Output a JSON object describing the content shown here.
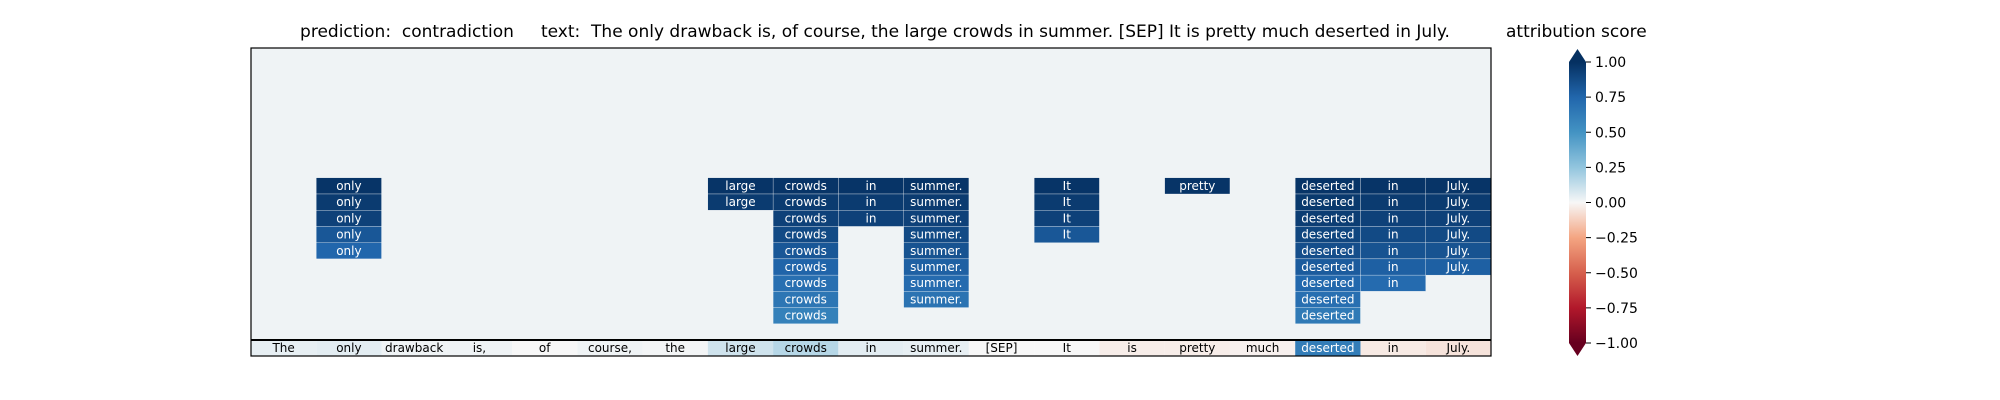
{
  "prediction_label": "prediction:",
  "prediction": "contradiction",
  "text_label": "text:",
  "text": "The only drawback is, of course, the large crowds in summer. [SEP] It is pretty much deserted in July.",
  "colorbar": {
    "title": "attribution score",
    "range": [
      -1.0,
      1.0
    ],
    "ticks": [
      "1.00",
      "0.75",
      "0.50",
      "0.25",
      "0.00",
      "−0.25",
      "−0.50",
      "−0.75",
      "−1.00"
    ],
    "colormap": "RdBu"
  },
  "chart_data": {
    "type": "heatmap",
    "title": "",
    "tokens": [
      "The",
      "only",
      "drawback",
      "is,",
      "of",
      "course,",
      "the",
      "large",
      "crowds",
      "in",
      "summer.",
      "[SEP]",
      "It",
      "is",
      "pretty",
      "much",
      "deserted",
      "in",
      "July."
    ],
    "token_scores": [
      0.04,
      0.05,
      0.02,
      0.02,
      0.0,
      0.02,
      0.01,
      0.1,
      0.16,
      0.05,
      0.04,
      0.0,
      0.0,
      -0.03,
      -0.03,
      -0.02,
      0.62,
      -0.04,
      -0.06
    ],
    "rows_above": 18,
    "background_score": 0.02,
    "columns": [
      {
        "token": "only",
        "values": [
          0.98,
          0.95,
          0.92,
          0.82,
          0.75
        ]
      },
      {
        "token": "large",
        "values": [
          0.98,
          0.95
        ]
      },
      {
        "token": "crowds",
        "values": [
          0.98,
          0.95,
          0.92,
          0.88,
          0.82,
          0.76,
          0.7,
          0.66,
          0.6
        ]
      },
      {
        "token": "in",
        "values": [
          0.98,
          0.95,
          0.92
        ]
      },
      {
        "token": "summer.",
        "values": [
          0.98,
          0.95,
          0.92,
          0.88,
          0.84,
          0.78,
          0.72,
          0.68
        ]
      },
      {
        "token": "It",
        "values": [
          0.98,
          0.95,
          0.92,
          0.82
        ]
      },
      {
        "token": "pretty",
        "values": [
          0.98
        ]
      },
      {
        "token": "deserted",
        "values": [
          0.98,
          0.96,
          0.94,
          0.9,
          0.86,
          0.8,
          0.74,
          0.7,
          0.64
        ]
      },
      {
        "token": "in",
        "token_index": 17,
        "values": [
          0.98,
          0.95,
          0.92,
          0.88,
          0.84,
          0.78,
          0.72
        ]
      },
      {
        "token": "July.",
        "values": [
          0.98,
          0.95,
          0.92,
          0.88,
          0.84,
          0.78
        ]
      }
    ]
  }
}
